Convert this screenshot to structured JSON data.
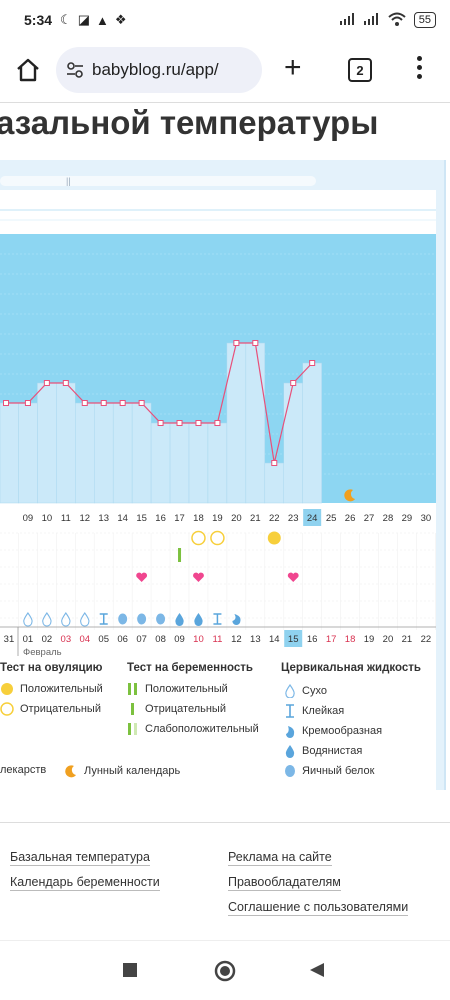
{
  "status": {
    "time": "5:34",
    "battery": "55"
  },
  "browser": {
    "url": "babyblog.ru/app/",
    "tab_count": "2"
  },
  "page": {
    "heading": "азальной температуры"
  },
  "chart_data": {
    "type": "line",
    "x": [
      "09",
      "10",
      "11",
      "12",
      "13",
      "14",
      "15",
      "16",
      "17",
      "18",
      "19",
      "20",
      "21",
      "22",
      "23",
      "24",
      "25",
      "26",
      "27",
      "28",
      "29",
      "30",
      "31"
    ],
    "temps_relative": [
      3,
      4,
      4,
      3,
      3,
      3,
      3,
      2,
      2,
      2,
      2,
      6,
      6,
      0,
      4,
      5
    ],
    "highlight_day": "24",
    "lunar_day": "26",
    "ovulation_tests": [
      {
        "day": "18",
        "result": "negative"
      },
      {
        "day": "19",
        "result": "negative"
      },
      {
        "day": "22",
        "result": "positive"
      }
    ],
    "pregnancy_tests": [
      {
        "day": "17",
        "result": "positive"
      }
    ],
    "hearts": [
      "15",
      "18",
      "23"
    ],
    "cervical": [
      {
        "day": "09",
        "type": "dry"
      },
      {
        "day": "10",
        "type": "dry"
      },
      {
        "day": "11",
        "type": "dry"
      },
      {
        "day": "12",
        "type": "dry"
      },
      {
        "day": "13",
        "type": "sticky"
      },
      {
        "day": "14",
        "type": "egg"
      },
      {
        "day": "15",
        "type": "egg"
      },
      {
        "day": "16",
        "type": "egg"
      },
      {
        "day": "17",
        "type": "watery"
      },
      {
        "day": "18",
        "type": "watery"
      },
      {
        "day": "19",
        "type": "sticky"
      },
      {
        "day": "20",
        "type": "creamy"
      }
    ],
    "cycle_days": [
      "31",
      "01",
      "02",
      "03",
      "04",
      "05",
      "06",
      "07",
      "08",
      "09",
      "10",
      "11",
      "12",
      "13",
      "14",
      "15",
      "16",
      "17",
      "18",
      "19",
      "20",
      "21",
      "22"
    ],
    "cycle_red": [
      "03",
      "04",
      "10",
      "11",
      "17",
      "18"
    ],
    "cycle_highlight": "15",
    "month_label": "Февраль",
    "row_labels_left": [
      "09",
      "10",
      "11",
      "12",
      "13",
      "14",
      "15",
      "16",
      "17",
      "18",
      "19",
      "20",
      "21",
      "22",
      "23",
      "24",
      "25",
      "26",
      "27",
      "28",
      "29",
      "30",
      "31"
    ]
  },
  "legend": {
    "ovulation": {
      "title": "Тест на овуляцию",
      "positive": "Положительный",
      "negative": "Отрицательный"
    },
    "pregnancy": {
      "title": "Тест на беременность",
      "positive": "Положительный",
      "negative": "Отрицательный",
      "weak": "Слабоположительный"
    },
    "cervical": {
      "title": "Цервикальная жидкость",
      "dry": "Сухо",
      "sticky": "Клейкая",
      "creamy": "Кремообразная",
      "watery": "Водянистая",
      "egg": "Яичный белок"
    },
    "meds": "лекарств",
    "lunar": "Лунный календарь",
    "colors": {
      "sky": "#8dd6f2",
      "bar": "#cbe9f9",
      "line": "#e8507a",
      "yellow": "#f7cf3b",
      "green": "#7cc13f",
      "heart": "#f0468f",
      "drop": "#7cb7e6"
    }
  },
  "footer": {
    "links_left": [
      "Базальная температура",
      "Календарь беременности"
    ],
    "links_right": [
      "Реклама на сайте",
      "Правообладателям",
      "Соглашение с пользователями"
    ]
  }
}
